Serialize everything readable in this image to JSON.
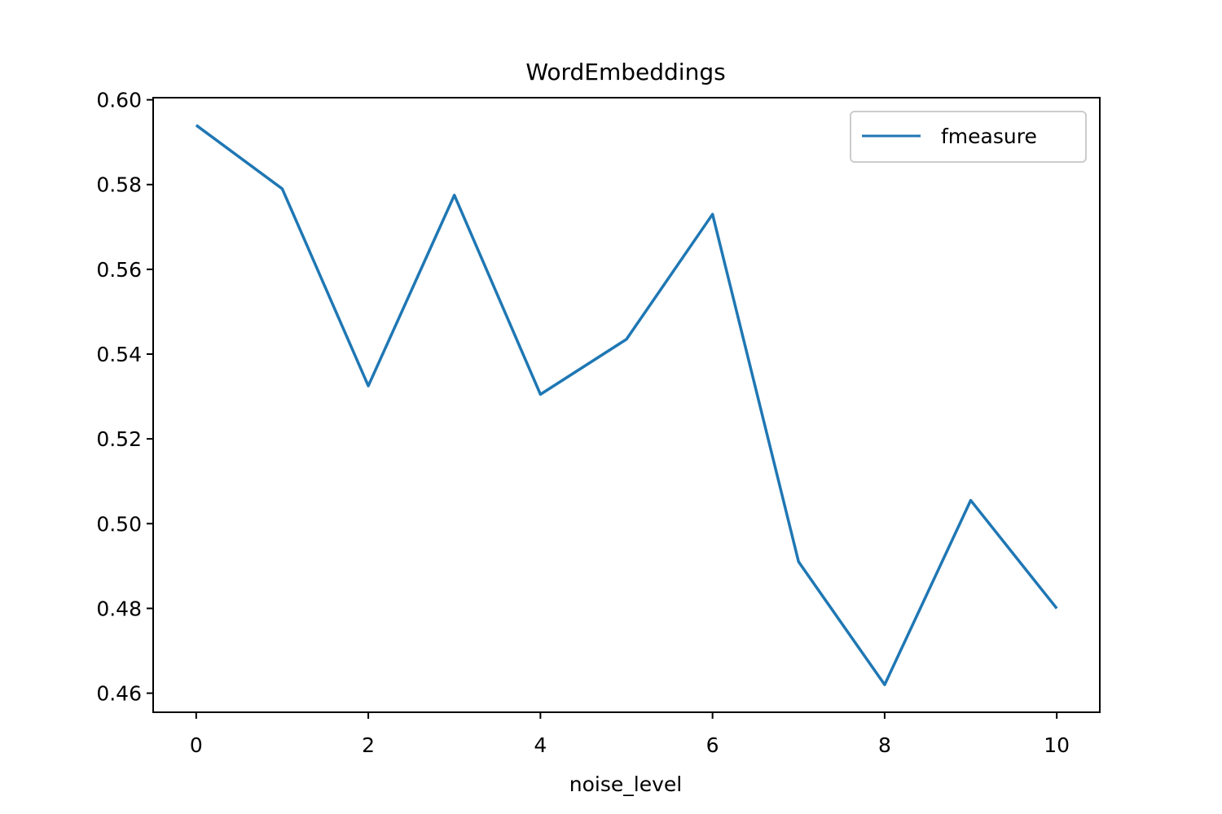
{
  "chart_data": {
    "type": "line",
    "title": "WordEmbeddings",
    "xlabel": "noise_level",
    "ylabel": "",
    "x": [
      0,
      1,
      2,
      3,
      4,
      5,
      6,
      7,
      8,
      9,
      10
    ],
    "series": [
      {
        "name": "fmeasure",
        "color": "#1f77b4",
        "values": [
          0.594,
          0.579,
          0.5325,
          0.5775,
          0.5305,
          0.5435,
          0.573,
          0.491,
          0.462,
          0.5055,
          0.48
        ]
      }
    ],
    "xlim": [
      -0.5,
      10.5
    ],
    "ylim": [
      0.4555,
      0.6005
    ],
    "xticks": [
      0,
      2,
      4,
      6,
      8,
      10
    ],
    "yticks": [
      0.46,
      0.48,
      0.5,
      0.52,
      0.54,
      0.56,
      0.58,
      0.6
    ],
    "xtick_labels": [
      "0",
      "2",
      "4",
      "6",
      "8",
      "10"
    ],
    "ytick_labels": [
      "0.46",
      "0.48",
      "0.50",
      "0.52",
      "0.54",
      "0.56",
      "0.58",
      "0.60"
    ],
    "grid": false,
    "legend_position": "top-right"
  }
}
